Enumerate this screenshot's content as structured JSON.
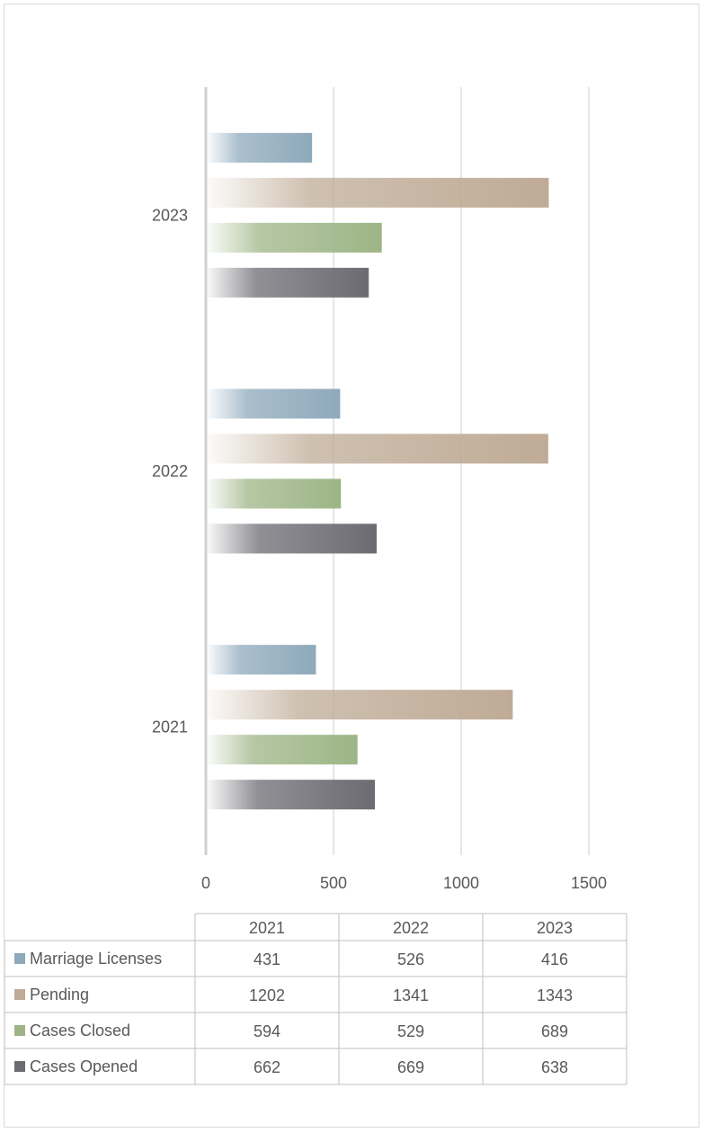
{
  "chart_data": {
    "type": "bar",
    "orientation": "horizontal",
    "title": "",
    "xlabel": "",
    "ylabel": "",
    "categories": [
      "2021",
      "2022",
      "2023"
    ],
    "xlim": [
      0,
      1500
    ],
    "xticks": [
      0,
      500,
      1000,
      1500
    ],
    "grid": true,
    "legend": "data-table-below",
    "series": [
      {
        "name": "Marriage Licenses",
        "values": [
          431,
          526,
          416
        ],
        "color": "#8ea9bb"
      },
      {
        "name": "Pending",
        "values": [
          1202,
          1341,
          1343
        ],
        "color": "#bfab96"
      },
      {
        "name": "Cases Closed",
        "values": [
          594,
          529,
          689
        ],
        "color": "#9db586"
      },
      {
        "name": "Cases Opened",
        "values": [
          662,
          669,
          638
        ],
        "color": "#6b6b72"
      }
    ]
  }
}
